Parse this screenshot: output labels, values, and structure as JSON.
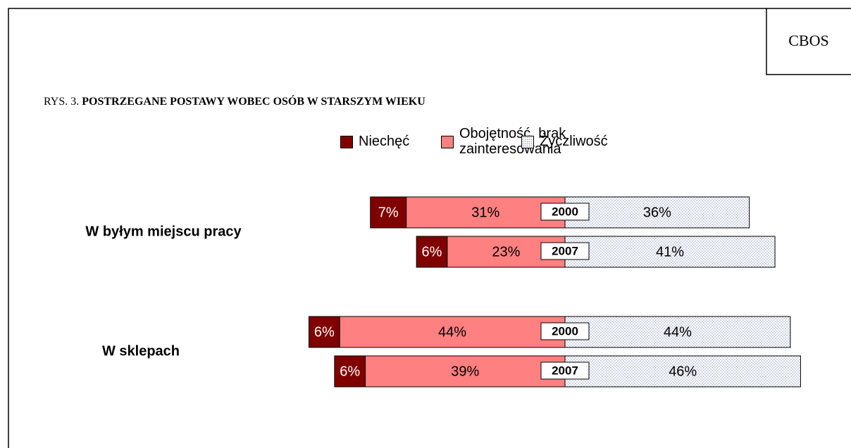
{
  "chart_data": {
    "type": "diverging-bar",
    "source": "CBOS",
    "figure_label": "RYS. 3.",
    "title": "POSTRZEGANE POSTAWY WOBEC OSÓB W STARSZYM WIEKU",
    "categories": [
      "W byłym miejscu pracy",
      "W sklepach"
    ],
    "years": [
      [
        "2000",
        "2007"
      ],
      [
        "2000",
        "2007"
      ]
    ],
    "series": [
      {
        "name": "Niechęć",
        "color": "#800000",
        "values": [
          [
            7,
            6
          ],
          [
            6,
            6
          ]
        ],
        "value_labels": [
          [
            "7%",
            "6%"
          ],
          [
            "6%",
            "6%"
          ]
        ]
      },
      {
        "name": "Obojętność, brak\nzainteresowania",
        "color": "#ff8080",
        "values": [
          [
            31,
            23
          ],
          [
            44,
            39
          ]
        ],
        "value_labels": [
          [
            "31%",
            "23%"
          ],
          [
            "44%",
            "39%"
          ]
        ]
      },
      {
        "name": "Życzliwość",
        "color": "#9aa4c8",
        "values": [
          [
            36,
            41
          ],
          [
            44,
            46
          ]
        ],
        "value_labels": [
          [
            "36%",
            "41%"
          ],
          [
            "44%",
            "46%"
          ]
        ]
      }
    ]
  }
}
